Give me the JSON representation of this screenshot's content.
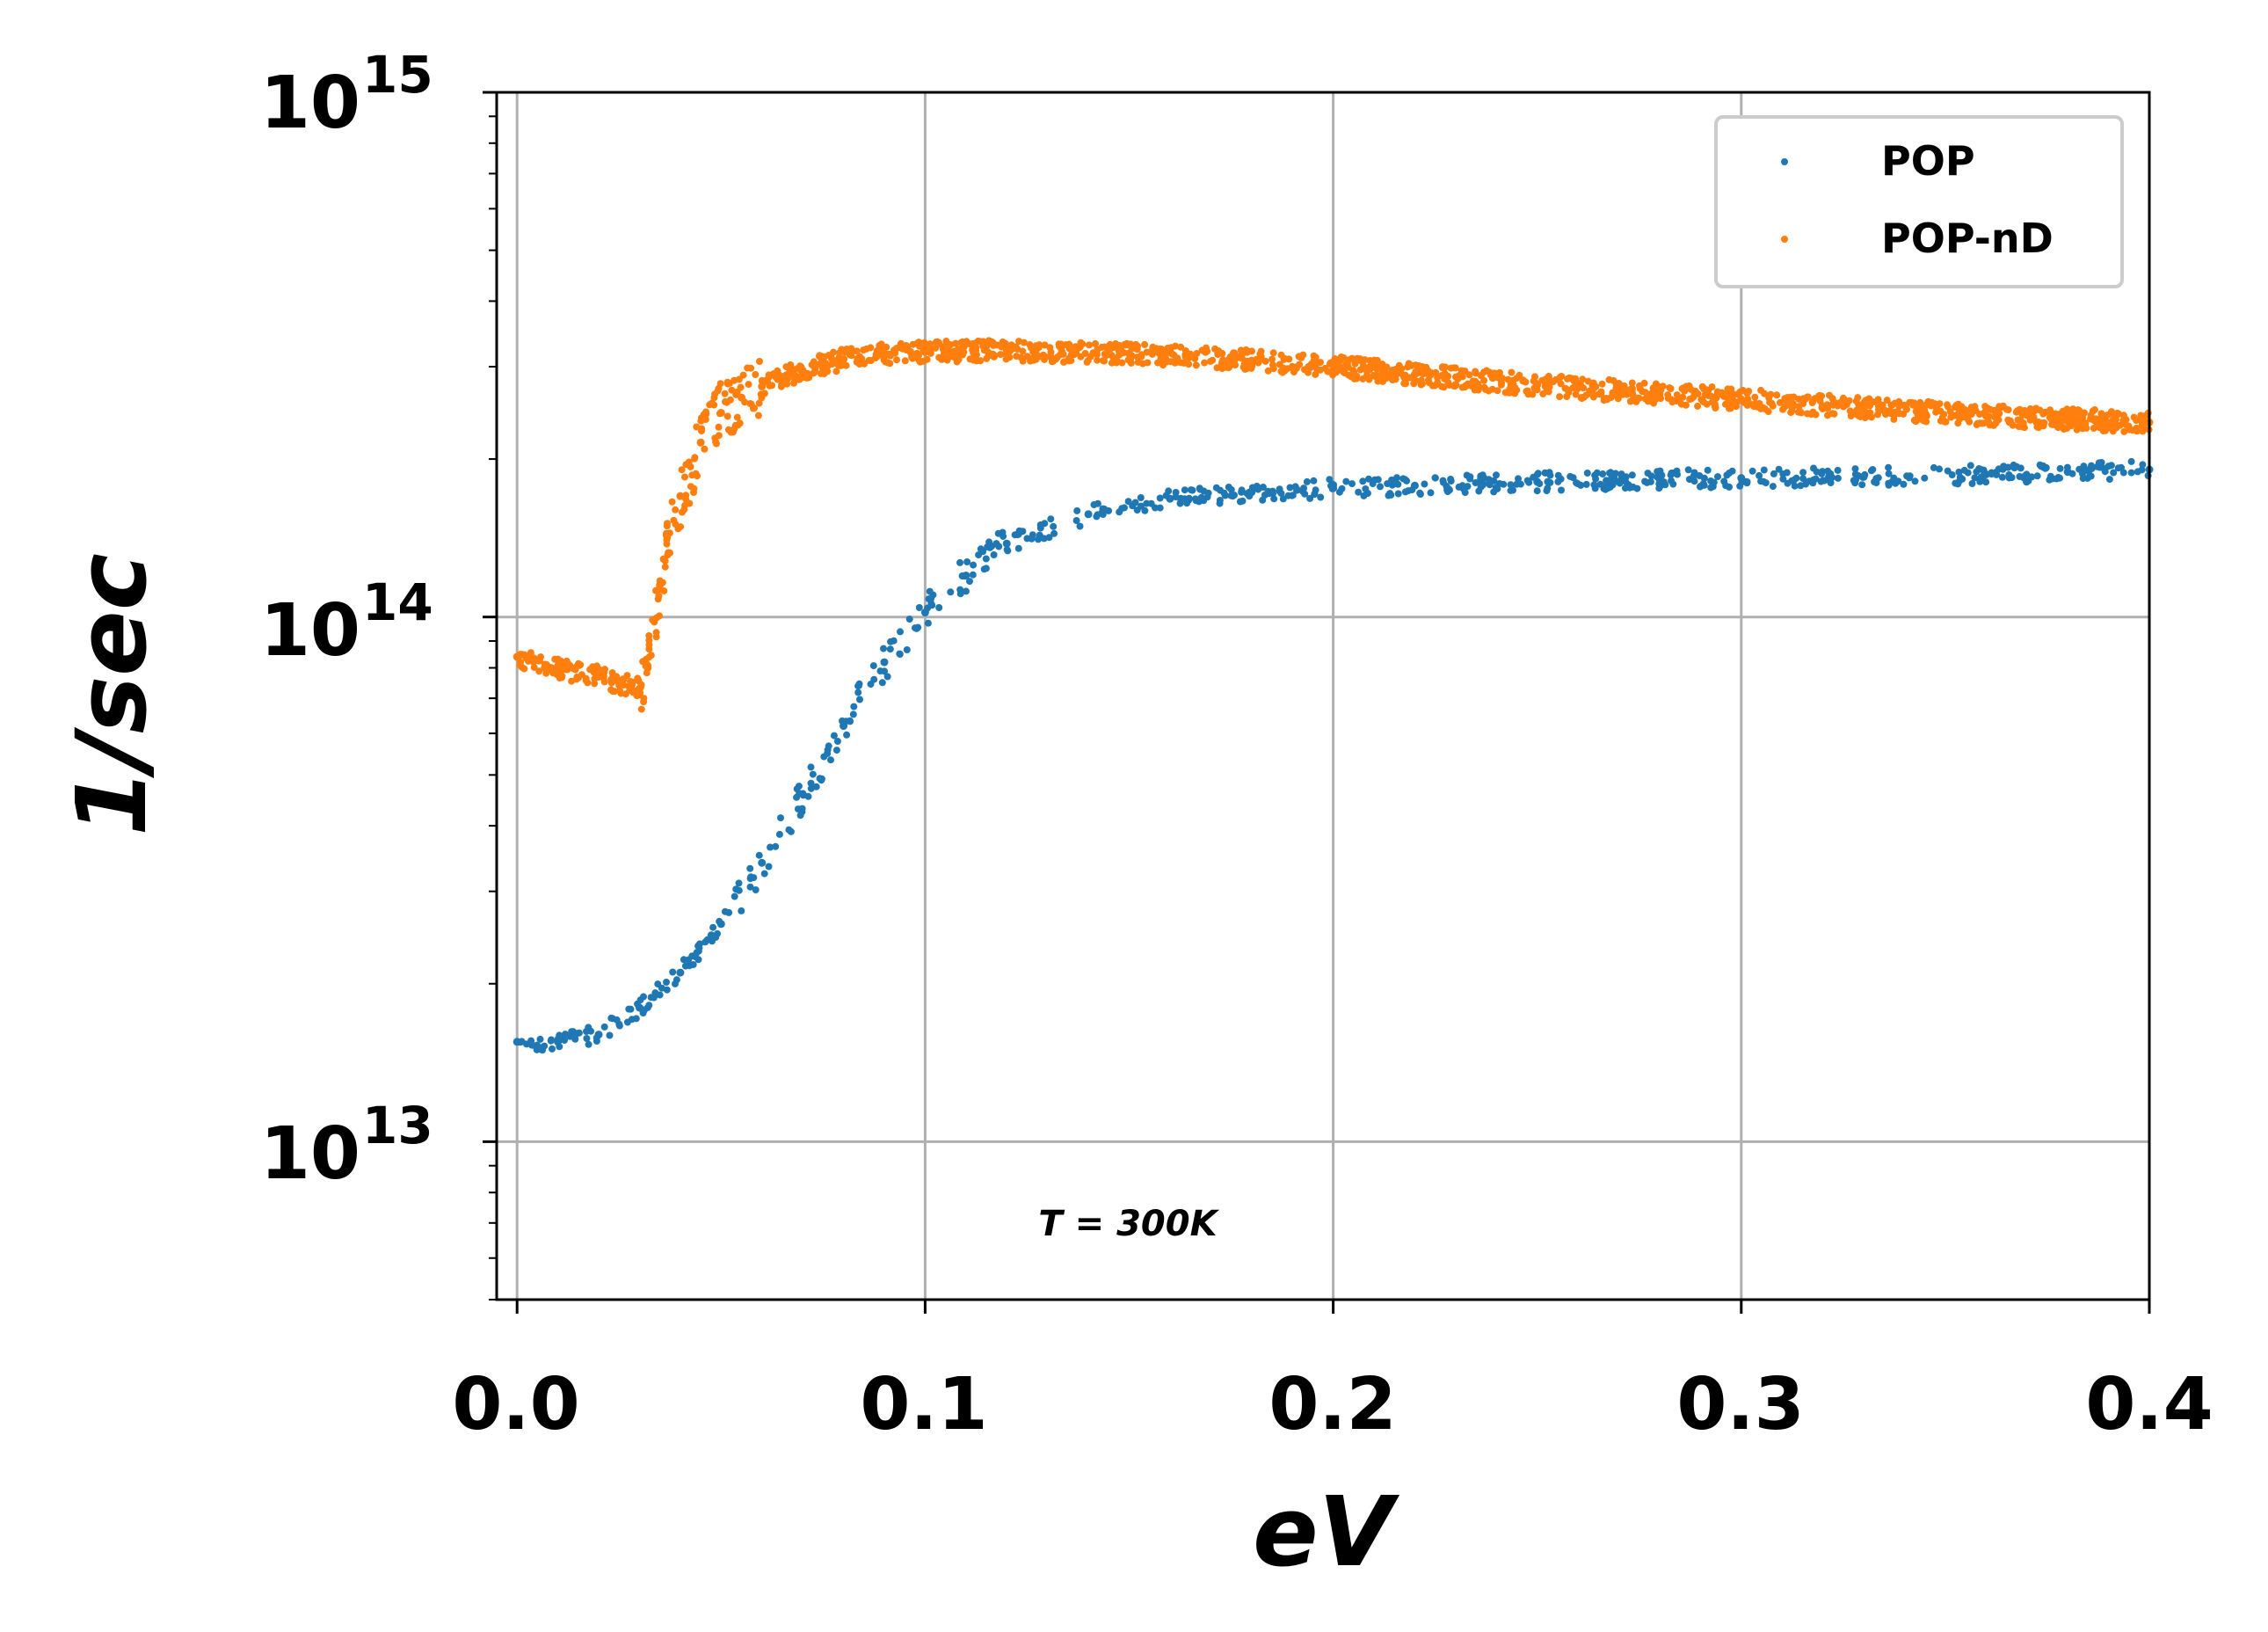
{
  "chart_data": {
    "type": "scatter",
    "title": "",
    "xlabel": "eV",
    "ylabel": "1/sec",
    "xscale": "linear",
    "yscale": "log",
    "xlim": [
      -0.005,
      0.4
    ],
    "ylim": [
      5000000000000,
      1000000000000000
    ],
    "grid": true,
    "legend_position": "top-right",
    "x_ticks": [
      0.0,
      0.1,
      0.2,
      0.3,
      0.4
    ],
    "x_tick_labels": [
      "0.0",
      "0.1",
      "0.2",
      "0.3",
      "0.4"
    ],
    "y_ticks": [
      10000000000000,
      100000000000000,
      1000000000000000
    ],
    "y_tick_labels": [
      {
        "base": "10",
        "exp": "13"
      },
      {
        "base": "10",
        "exp": "14"
      },
      {
        "base": "10",
        "exp": "15"
      }
    ],
    "annotation": "T = 300K",
    "series": [
      {
        "name": "POP",
        "color": "#1f77b4",
        "x": [
          0.0,
          0.01,
          0.02,
          0.03,
          0.04,
          0.05,
          0.06,
          0.07,
          0.08,
          0.09,
          0.1,
          0.11,
          0.12,
          0.14,
          0.16,
          0.18,
          0.2,
          0.22,
          0.25,
          0.28,
          0.3,
          0.33,
          0.36,
          0.38,
          0.4
        ],
        "y": [
          15500000000000,
          15500000000000,
          16000000000000,
          18000000000000,
          21000000000000,
          26000000000000,
          34000000000000,
          46000000000000,
          62000000000000,
          82000000000000,
          102000000000000,
          120000000000000,
          138000000000000,
          157000000000000,
          168000000000000,
          173000000000000,
          176000000000000,
          178000000000000,
          181000000000000,
          183000000000000,
          184000000000000,
          185000000000000,
          187000000000000,
          189000000000000,
          191000000000000
        ]
      },
      {
        "name": "POP-nD",
        "color": "#ff7f0e",
        "x": [
          0.0,
          0.01,
          0.02,
          0.03,
          0.032,
          0.035,
          0.04,
          0.045,
          0.05,
          0.055,
          0.06,
          0.07,
          0.08,
          0.09,
          0.1,
          0.12,
          0.15,
          0.18,
          0.2,
          0.22,
          0.25,
          0.28,
          0.3,
          0.33,
          0.36,
          0.4
        ],
        "y": [
          84000000000000,
          80000000000000,
          77000000000000,
          73000000000000,
          80000000000000,
          115000000000000,
          170000000000000,
          215000000000000,
          245000000000000,
          262000000000000,
          275000000000000,
          295000000000000,
          310000000000000,
          317000000000000,
          320000000000000,
          322000000000000,
          318000000000000,
          308000000000000,
          300000000000000,
          290000000000000,
          277000000000000,
          266000000000000,
          260000000000000,
          250000000000000,
          242000000000000,
          235000000000000
        ]
      }
    ]
  }
}
